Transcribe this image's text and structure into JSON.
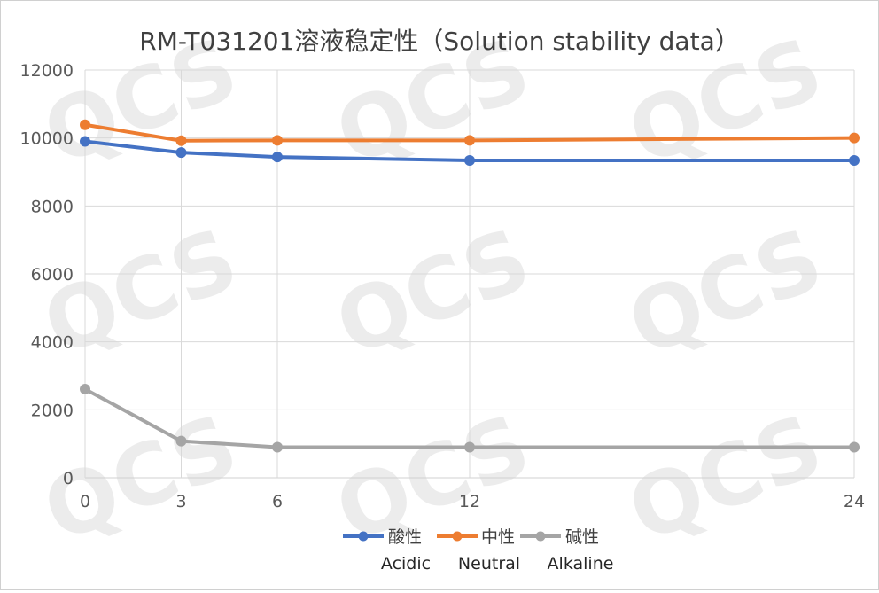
{
  "chart_data": {
    "type": "line",
    "title": "RM-T031201溶液稳定性（Solution stability data）",
    "categories": [
      "0",
      "3",
      "6",
      "12",
      "24"
    ],
    "x": [
      0,
      3,
      6,
      12,
      24
    ],
    "ylim": [
      0,
      12000
    ],
    "yticks": [
      "0",
      "2000",
      "4000",
      "6000",
      "8000",
      "10000",
      "12000"
    ],
    "grid": true,
    "legend_position": "bottom",
    "legend_subtitle": [
      "Acidic",
      "Neutral",
      "Alkaline"
    ],
    "watermark": "QCS",
    "series": [
      {
        "name": "酸性",
        "color": "#4472C4",
        "values": [
          9900,
          9570,
          9440,
          9340,
          9340
        ]
      },
      {
        "name": "中性",
        "color": "#ED7D31",
        "values": [
          10390,
          9920,
          9930,
          9930,
          10000
        ]
      },
      {
        "name": "碱性",
        "color": "#A5A5A5",
        "values": [
          2610,
          1080,
          900,
          900,
          900
        ]
      }
    ]
  }
}
